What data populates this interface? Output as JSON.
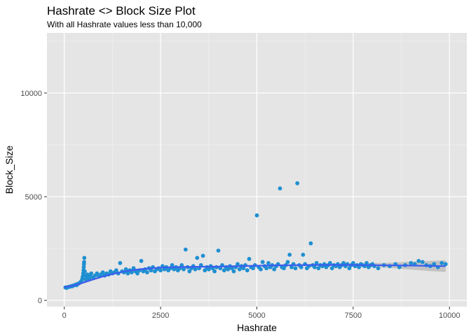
{
  "chart_data": {
    "type": "scatter",
    "title": "Hashrate <> Block Size Plot",
    "subtitle": "With all Hashrate values less than 10,000",
    "xlabel": "Hashrate",
    "ylabel": "Block_Size",
    "xlim": [
      -450,
      10450
    ],
    "ylim": [
      -300,
      12900
    ],
    "x_ticks": [
      0,
      2500,
      5000,
      7500,
      10000
    ],
    "y_ticks": [
      0,
      5000,
      10000
    ],
    "x_tick_labels": [
      "0",
      "2500",
      "5000",
      "7500",
      "10000"
    ],
    "y_tick_labels": [
      "0",
      "5000",
      "10000"
    ],
    "grid": true,
    "colors": {
      "panel": "#e5e5e5",
      "grid_major": "#ffffff",
      "grid_minor": "#f2f2f2",
      "points": "#1f8fd1",
      "trend": "#3d5cf0",
      "ribbon": "#b5b5b5"
    },
    "points": [
      [
        30,
        620
      ],
      [
        60,
        600
      ],
      [
        90,
        640
      ],
      [
        120,
        650
      ],
      [
        150,
        660
      ],
      [
        180,
        690
      ],
      [
        210,
        680
      ],
      [
        240,
        720
      ],
      [
        270,
        740
      ],
      [
        300,
        760
      ],
      [
        320,
        730
      ],
      [
        350,
        800
      ],
      [
        380,
        820
      ],
      [
        410,
        860
      ],
      [
        430,
        900
      ],
      [
        450,
        950
      ],
      [
        470,
        1050
      ],
      [
        480,
        1150
      ],
      [
        490,
        1300
      ],
      [
        500,
        1450
      ],
      [
        505,
        1600
      ],
      [
        510,
        1750
      ],
      [
        515,
        1850
      ],
      [
        520,
        2050
      ],
      [
        530,
        1400
      ],
      [
        540,
        1200
      ],
      [
        560,
        1000
      ],
      [
        580,
        1100
      ],
      [
        600,
        1250
      ],
      [
        620,
        1150
      ],
      [
        650,
        1050
      ],
      [
        680,
        1200
      ],
      [
        700,
        1300
      ],
      [
        750,
        1100
      ],
      [
        800,
        1200
      ],
      [
        850,
        1300
      ],
      [
        900,
        1150
      ],
      [
        950,
        1250
      ],
      [
        1000,
        1350
      ],
      [
        1050,
        1200
      ],
      [
        1100,
        1300
      ],
      [
        1150,
        1250
      ],
      [
        1200,
        1400
      ],
      [
        1250,
        1300
      ],
      [
        1300,
        1350
      ],
      [
        1350,
        1450
      ],
      [
        1400,
        1300
      ],
      [
        1450,
        1800
      ],
      [
        1500,
        1400
      ],
      [
        1550,
        1350
      ],
      [
        1600,
        1500
      ],
      [
        1650,
        1300
      ],
      [
        1700,
        1450
      ],
      [
        1750,
        1350
      ],
      [
        1800,
        1550
      ],
      [
        1850,
        1400
      ],
      [
        1900,
        1300
      ],
      [
        1950,
        1450
      ],
      [
        2000,
        1900
      ],
      [
        2050,
        1400
      ],
      [
        2100,
        1500
      ],
      [
        2150,
        1350
      ],
      [
        2200,
        1550
      ],
      [
        2250,
        1450
      ],
      [
        2300,
        1600
      ],
      [
        2350,
        1400
      ],
      [
        2400,
        1500
      ],
      [
        2450,
        1550
      ],
      [
        2500,
        1450
      ],
      [
        2550,
        1650
      ],
      [
        2600,
        1500
      ],
      [
        2650,
        1600
      ],
      [
        2700,
        1450
      ],
      [
        2750,
        1550
      ],
      [
        2800,
        1700
      ],
      [
        2850,
        1500
      ],
      [
        2900,
        1600
      ],
      [
        2950,
        1450
      ],
      [
        3000,
        1550
      ],
      [
        3050,
        1700
      ],
      [
        3100,
        1500
      ],
      [
        3150,
        2450
      ],
      [
        3200,
        1600
      ],
      [
        3250,
        1400
      ],
      [
        3300,
        1550
      ],
      [
        3350,
        1650
      ],
      [
        3400,
        1500
      ],
      [
        3450,
        2050
      ],
      [
        3500,
        1550
      ],
      [
        3550,
        1700
      ],
      [
        3600,
        2150
      ],
      [
        3650,
        1450
      ],
      [
        3700,
        1600
      ],
      [
        3750,
        1500
      ],
      [
        3800,
        1650
      ],
      [
        3850,
        1550
      ],
      [
        3900,
        1400
      ],
      [
        3950,
        1600
      ],
      [
        4000,
        2400
      ],
      [
        4050,
        1550
      ],
      [
        4100,
        1700
      ],
      [
        4150,
        1450
      ],
      [
        4200,
        1600
      ],
      [
        4250,
        1500
      ],
      [
        4300,
        1650
      ],
      [
        4350,
        1550
      ],
      [
        4400,
        1400
      ],
      [
        4450,
        1600
      ],
      [
        4500,
        1750
      ],
      [
        4550,
        1500
      ],
      [
        4600,
        1650
      ],
      [
        4650,
        1550
      ],
      [
        4700,
        1700
      ],
      [
        4750,
        1450
      ],
      [
        4800,
        2000
      ],
      [
        4850,
        1600
      ],
      [
        4900,
        1550
      ],
      [
        4950,
        1700
      ],
      [
        5000,
        4100
      ],
      [
        5050,
        1600
      ],
      [
        5100,
        1500
      ],
      [
        5150,
        1850
      ],
      [
        5200,
        1650
      ],
      [
        5250,
        1550
      ],
      [
        5300,
        1800
      ],
      [
        5350,
        1600
      ],
      [
        5400,
        1700
      ],
      [
        5450,
        1500
      ],
      [
        5500,
        1650
      ],
      [
        5550,
        1750
      ],
      [
        5600,
        5400
      ],
      [
        5650,
        1600
      ],
      [
        5700,
        1550
      ],
      [
        5750,
        1700
      ],
      [
        5800,
        1850
      ],
      [
        5850,
        2200
      ],
      [
        5900,
        1600
      ],
      [
        5950,
        1750
      ],
      [
        6000,
        1550
      ],
      [
        6050,
        5650
      ],
      [
        6100,
        1700
      ],
      [
        6150,
        1600
      ],
      [
        6200,
        2200
      ],
      [
        6250,
        1750
      ],
      [
        6300,
        1550
      ],
      [
        6350,
        1650
      ],
      [
        6400,
        2750
      ],
      [
        6450,
        1700
      ],
      [
        6500,
        1600
      ],
      [
        6550,
        1800
      ],
      [
        6600,
        1550
      ],
      [
        6650,
        1700
      ],
      [
        6700,
        1650
      ],
      [
        6750,
        1750
      ],
      [
        6800,
        1600
      ],
      [
        6850,
        1700
      ],
      [
        6900,
        1800
      ],
      [
        6950,
        1550
      ],
      [
        7000,
        1700
      ],
      [
        7050,
        1650
      ],
      [
        7100,
        1750
      ],
      [
        7150,
        1600
      ],
      [
        7200,
        1700
      ],
      [
        7250,
        1800
      ],
      [
        7300,
        1650
      ],
      [
        7350,
        1750
      ],
      [
        7400,
        1550
      ],
      [
        7450,
        1700
      ],
      [
        7500,
        1800
      ],
      [
        7550,
        1650
      ],
      [
        7600,
        1700
      ],
      [
        7650,
        1600
      ],
      [
        7700,
        1750
      ],
      [
        7750,
        1700
      ],
      [
        7800,
        1650
      ],
      [
        7850,
        1800
      ],
      [
        7900,
        1600
      ],
      [
        7950,
        1700
      ],
      [
        8000,
        1750
      ],
      [
        8050,
        1650
      ],
      [
        8150,
        1550
      ],
      [
        8300,
        1700
      ],
      [
        8450,
        1650
      ],
      [
        8600,
        1750
      ],
      [
        8700,
        1600
      ],
      [
        8850,
        1700
      ],
      [
        9000,
        1800
      ],
      [
        9100,
        1750
      ],
      [
        9200,
        1900
      ],
      [
        9300,
        1850
      ],
      [
        9400,
        1700
      ],
      [
        9500,
        1650
      ],
      [
        9600,
        1750
      ],
      [
        9700,
        1600
      ],
      [
        9800,
        1800
      ],
      [
        9900,
        1750
      ]
    ],
    "trend": [
      [
        0,
        640
      ],
      [
        250,
        720
      ],
      [
        500,
        860
      ],
      [
        750,
        1010
      ],
      [
        1000,
        1150
      ],
      [
        1250,
        1270
      ],
      [
        1500,
        1370
      ],
      [
        1750,
        1450
      ],
      [
        2000,
        1510
      ],
      [
        2500,
        1580
      ],
      [
        3000,
        1610
      ],
      [
        3500,
        1620
      ],
      [
        4000,
        1630
      ],
      [
        4500,
        1650
      ],
      [
        5000,
        1670
      ],
      [
        5500,
        1690
      ],
      [
        6000,
        1700
      ],
      [
        6500,
        1710
      ],
      [
        7000,
        1710
      ],
      [
        7500,
        1710
      ],
      [
        8000,
        1700
      ],
      [
        8500,
        1690
      ],
      [
        9000,
        1680
      ],
      [
        9500,
        1660
      ],
      [
        9900,
        1650
      ]
    ],
    "ribbon_halfwidth": [
      [
        0,
        70
      ],
      [
        1000,
        40
      ],
      [
        3000,
        35
      ],
      [
        6000,
        40
      ],
      [
        7500,
        60
      ],
      [
        8500,
        130
      ],
      [
        9200,
        220
      ],
      [
        9900,
        280
      ]
    ]
  }
}
